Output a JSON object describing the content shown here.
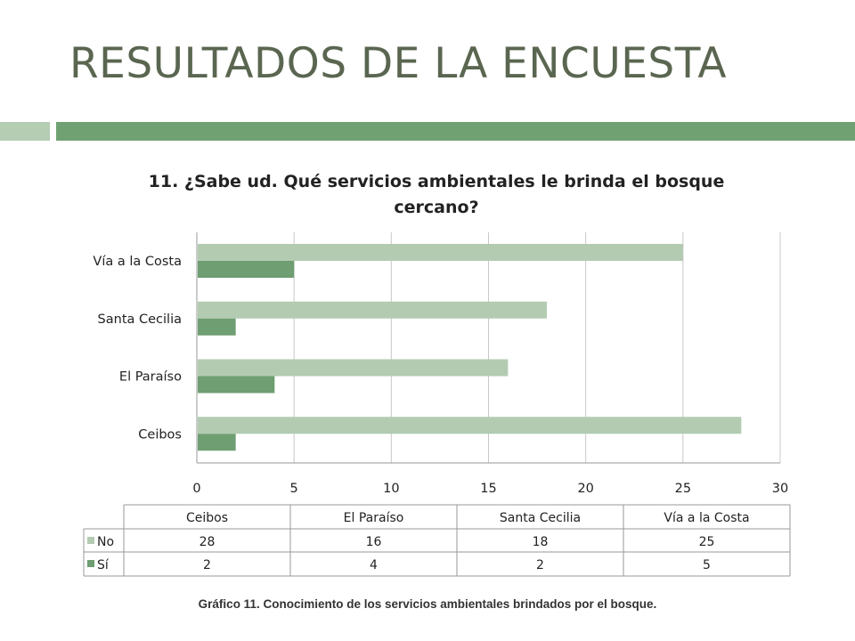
{
  "slide": {
    "title": "RESULTADOS DE LA ENCUESTA",
    "caption": "Gráfico 11. Conocimiento de los servicios ambientales brindados por el bosque."
  },
  "colors": {
    "title": "#5a6650",
    "rule_light": "#b4cdb3",
    "rule_dark": "#6fa173",
    "no": "#b2cbb1",
    "si": "#6e9e72",
    "grid": "#c8c8c8"
  },
  "chart_data": {
    "type": "bar",
    "orientation": "horizontal",
    "title": "11. ¿Sabe ud. Qué servicios ambientales le brinda el bosque cercano?",
    "categories": [
      "Ceibos",
      "El Paraíso",
      "Santa Cecilia",
      "Vía a la Costa"
    ],
    "series": [
      {
        "name": "No",
        "values": [
          28,
          16,
          18,
          25
        ],
        "color": "#b2cbb1"
      },
      {
        "name": "Sí",
        "values": [
          2,
          4,
          2,
          5
        ],
        "color": "#6e9e72"
      }
    ],
    "xlim": [
      0,
      30
    ],
    "xticks": [
      0,
      5,
      10,
      15,
      20,
      25,
      30
    ],
    "grid": true,
    "legend": "data-table"
  }
}
